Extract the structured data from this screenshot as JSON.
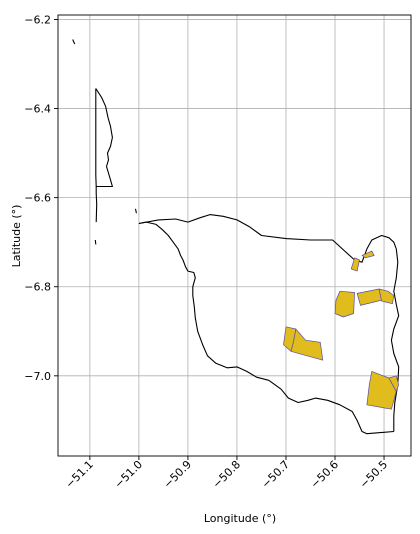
{
  "chart_data": {
    "type": "map",
    "title": "",
    "xlabel": "Longitude (°)",
    "ylabel": "Latitude (°)",
    "xlim": [
      -51.165,
      -50.445
    ],
    "ylim": [
      -7.18,
      -6.19
    ],
    "xticks": [
      -51.1,
      -51.0,
      -50.9,
      -50.8,
      -50.7,
      -50.6,
      -50.5
    ],
    "yticks": [
      -6.2,
      -6.4,
      -6.6,
      -6.8,
      -7.0
    ],
    "xtick_labels": [
      "−51.1",
      "−51.0",
      "−50.9",
      "−50.8",
      "−50.7",
      "−50.6",
      "−50.5"
    ],
    "ytick_labels": [
      "−6.2",
      "−6.4",
      "−6.6",
      "−6.8",
      "−7.0"
    ],
    "grid": true,
    "colors": {
      "boundary": "#000000",
      "parcel_fill": "#e0bc1c",
      "parcel_edge": "#5b4fa3",
      "grid": "#b0b0b0"
    },
    "boundary": [
      [
        [
          -51.135,
          -6.245
        ],
        [
          -51.131,
          -6.255
        ]
      ],
      [
        [
          -51.088,
          -6.355
        ],
        [
          -51.076,
          -6.375
        ],
        [
          -51.068,
          -6.395
        ],
        [
          -51.063,
          -6.42
        ],
        [
          -51.058,
          -6.44
        ],
        [
          -51.054,
          -6.465
        ],
        [
          -51.058,
          -6.485
        ],
        [
          -51.064,
          -6.5
        ],
        [
          -51.062,
          -6.515
        ],
        [
          -51.066,
          -6.53
        ],
        [
          -51.062,
          -6.545
        ],
        [
          -51.058,
          -6.56
        ],
        [
          -51.054,
          -6.575
        ],
        [
          -51.087,
          -6.575
        ],
        [
          -51.087,
          -6.58
        ],
        [
          -51.087,
          -6.59
        ],
        [
          -51.086,
          -6.615
        ],
        [
          -51.087,
          -6.655
        ]
      ],
      [
        [
          -51.088,
          -6.355
        ],
        [
          -51.088,
          -6.4
        ],
        [
          -51.088,
          -6.45
        ],
        [
          -51.088,
          -6.5
        ],
        [
          -51.088,
          -6.55
        ],
        [
          -51.087,
          -6.575
        ]
      ],
      [
        [
          -51.089,
          -6.695
        ],
        [
          -51.088,
          -6.705
        ]
      ],
      [
        [
          -51.007,
          -6.625
        ],
        [
          -51.005,
          -6.635
        ]
      ],
      [
        [
          -51.0,
          -6.658
        ],
        [
          -50.985,
          -6.655
        ],
        [
          -50.965,
          -6.66
        ],
        [
          -50.952,
          -6.672
        ],
        [
          -50.94,
          -6.685
        ],
        [
          -50.93,
          -6.7
        ],
        [
          -50.92,
          -6.715
        ],
        [
          -50.915,
          -6.73
        ],
        [
          -50.91,
          -6.74
        ],
        [
          -50.905,
          -6.755
        ],
        [
          -50.9,
          -6.765
        ],
        [
          -50.888,
          -6.768
        ],
        [
          -50.885,
          -6.78
        ],
        [
          -50.89,
          -6.8
        ],
        [
          -50.89,
          -6.82
        ],
        [
          -50.887,
          -6.845
        ],
        [
          -50.885,
          -6.87
        ],
        [
          -50.88,
          -6.9
        ],
        [
          -50.87,
          -6.93
        ],
        [
          -50.86,
          -6.955
        ],
        [
          -50.843,
          -6.972
        ],
        [
          -50.82,
          -6.982
        ],
        [
          -50.8,
          -6.98
        ],
        [
          -50.78,
          -6.99
        ],
        [
          -50.76,
          -7.003
        ],
        [
          -50.735,
          -7.01
        ],
        [
          -50.71,
          -7.03
        ],
        [
          -50.695,
          -7.05
        ],
        [
          -50.675,
          -7.06
        ],
        [
          -50.655,
          -7.055
        ],
        [
          -50.64,
          -7.05
        ],
        [
          -50.615,
          -7.055
        ],
        [
          -50.59,
          -7.065
        ],
        [
          -50.565,
          -7.08
        ],
        [
          -50.555,
          -7.1
        ],
        [
          -50.545,
          -7.125
        ],
        [
          -50.535,
          -7.13
        ],
        [
          -50.48,
          -7.125
        ]
      ],
      [
        [
          -51.0,
          -6.658
        ],
        [
          -50.96,
          -6.65
        ],
        [
          -50.925,
          -6.648
        ],
        [
          -50.9,
          -6.655
        ],
        [
          -50.875,
          -6.645
        ],
        [
          -50.855,
          -6.638
        ],
        [
          -50.828,
          -6.642
        ],
        [
          -50.8,
          -6.65
        ],
        [
          -50.775,
          -6.665
        ],
        [
          -50.75,
          -6.685
        ],
        [
          -50.7,
          -6.692
        ],
        [
          -50.65,
          -6.695
        ],
        [
          -50.605,
          -6.695
        ],
        [
          -50.58,
          -6.72
        ],
        [
          -50.56,
          -6.74
        ],
        [
          -50.545,
          -6.745
        ],
        [
          -50.535,
          -6.715
        ],
        [
          -50.525,
          -6.695
        ],
        [
          -50.505,
          -6.685
        ],
        [
          -50.49,
          -6.69
        ],
        [
          -50.48,
          -6.7
        ],
        [
          -50.475,
          -6.715
        ],
        [
          -50.472,
          -6.745
        ],
        [
          -50.475,
          -6.78
        ],
        [
          -50.48,
          -6.81
        ],
        [
          -50.475,
          -6.84
        ],
        [
          -50.47,
          -6.865
        ],
        [
          -50.48,
          -6.895
        ],
        [
          -50.485,
          -6.92
        ],
        [
          -50.48,
          -6.95
        ],
        [
          -50.47,
          -6.98
        ],
        [
          -50.472,
          -7.02
        ],
        [
          -50.478,
          -7.06
        ],
        [
          -50.48,
          -7.09
        ],
        [
          -50.48,
          -7.125
        ]
      ]
    ],
    "parcels": [
      [
        [
          -50.56,
          -6.735
        ],
        [
          -50.55,
          -6.74
        ],
        [
          -50.555,
          -6.765
        ],
        [
          -50.567,
          -6.76
        ]
      ],
      [
        [
          -50.545,
          -6.73
        ],
        [
          -50.525,
          -6.72
        ],
        [
          -50.52,
          -6.73
        ],
        [
          -50.538,
          -6.735
        ]
      ],
      [
        [
          -50.59,
          -6.81
        ],
        [
          -50.56,
          -6.813
        ],
        [
          -50.562,
          -6.86
        ],
        [
          -50.583,
          -6.868
        ],
        [
          -50.6,
          -6.86
        ],
        [
          -50.598,
          -6.83
        ]
      ],
      [
        [
          -50.555,
          -6.815
        ],
        [
          -50.51,
          -6.805
        ],
        [
          -50.505,
          -6.83
        ],
        [
          -50.548,
          -6.842
        ]
      ],
      [
        [
          -50.51,
          -6.805
        ],
        [
          -50.492,
          -6.81
        ],
        [
          -50.48,
          -6.82
        ],
        [
          -50.483,
          -6.838
        ],
        [
          -50.505,
          -6.832
        ]
      ],
      [
        [
          -50.68,
          -6.895
        ],
        [
          -50.66,
          -6.92
        ],
        [
          -50.63,
          -6.925
        ],
        [
          -50.625,
          -6.965
        ],
        [
          -50.69,
          -6.945
        ],
        [
          -50.685,
          -6.925
        ]
      ],
      [
        [
          -50.7,
          -6.89
        ],
        [
          -50.68,
          -6.895
        ],
        [
          -50.685,
          -6.925
        ],
        [
          -50.69,
          -6.945
        ],
        [
          -50.705,
          -6.93
        ]
      ],
      [
        [
          -50.525,
          -6.99
        ],
        [
          -50.49,
          -7.005
        ],
        [
          -50.475,
          -7.035
        ],
        [
          -50.485,
          -7.075
        ],
        [
          -50.535,
          -7.065
        ],
        [
          -50.53,
          -7.02
        ]
      ],
      [
        [
          -50.49,
          -7.005
        ],
        [
          -50.475,
          -7.0
        ],
        [
          -50.47,
          -7.02
        ],
        [
          -50.475,
          -7.035
        ]
      ]
    ]
  }
}
